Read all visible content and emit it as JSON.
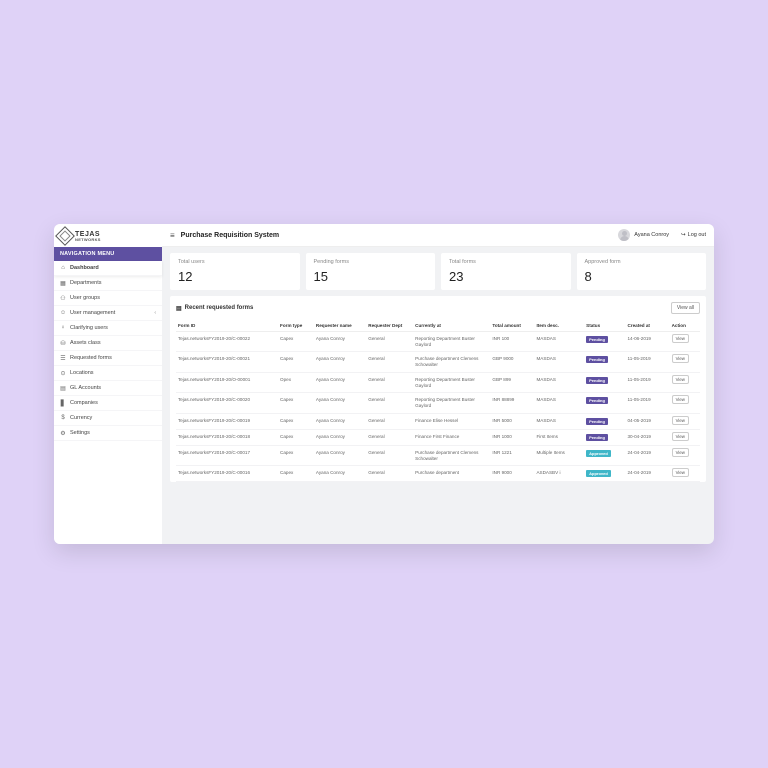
{
  "brand": {
    "line1": "TEJAS",
    "line2": "NETWORKS"
  },
  "nav": {
    "header": "NAVIGATION MENU",
    "items": [
      {
        "icon": "⌂",
        "label": "Dashboard",
        "active": true
      },
      {
        "icon": "▦",
        "label": "Departments"
      },
      {
        "icon": "⚇",
        "label": "User groups"
      },
      {
        "icon": "☺",
        "label": "User management",
        "chev": "‹"
      },
      {
        "icon": "♀",
        "label": "Clarifying users"
      },
      {
        "icon": "⛁",
        "label": "Assets class"
      },
      {
        "icon": "☰",
        "label": "Requested forms"
      },
      {
        "icon": "⊙",
        "label": "Locations"
      },
      {
        "icon": "▤",
        "label": "GL Accounts"
      },
      {
        "icon": "▋",
        "label": "Companies"
      },
      {
        "icon": "$",
        "label": "Currency"
      },
      {
        "icon": "⚙",
        "label": "Settings"
      }
    ]
  },
  "header": {
    "title": "Purchase Requisition System",
    "user": "Ayana Conroy",
    "logout": "Log out"
  },
  "cards": [
    {
      "label": "Total users",
      "value": "12"
    },
    {
      "label": "Pending forms",
      "value": "15"
    },
    {
      "label": "Total forms",
      "value": "23"
    },
    {
      "label": "Approved form",
      "value": "8"
    }
  ],
  "table": {
    "title": "Recent requested forms",
    "view_all": "View all",
    "columns": [
      "Form ID",
      "Form type",
      "Requester name",
      "Requester Dept",
      "Currently at",
      "Total amount",
      "Item desc.",
      "Status",
      "Created at",
      "Action"
    ],
    "rows": [
      {
        "id": "Tejas.networksFY2019-20/C-00022",
        "type": "Capex",
        "req": "Ayana Conroy",
        "dept": "General",
        "curr": "Reporting Department Buster Gaylord",
        "amt": "INR 100",
        "item": "MASDAS",
        "status": "Pending",
        "status_kind": "pending",
        "created": "14-06-2019"
      },
      {
        "id": "Tejas.networksFY2019-20/C-00021",
        "type": "Capex",
        "req": "Ayana Conroy",
        "dept": "General",
        "curr": "Purchase department Clemens Schowalter",
        "amt": "GBP 9000",
        "item": "MASDAS",
        "status": "Pending",
        "status_kind": "pending",
        "created": "11-05-2019"
      },
      {
        "id": "Tejas.networksFY2019-20/O-00001",
        "type": "Opex",
        "req": "Ayana Conroy",
        "dept": "General",
        "curr": "Reporting Department Buster Gaylord",
        "amt": "GBP 899",
        "item": "MASDAS",
        "status": "Pending",
        "status_kind": "pending",
        "created": "11-05-2019"
      },
      {
        "id": "Tejas.networksFY2019-20/C-00020",
        "type": "Capex",
        "req": "Ayana Conroy",
        "dept": "General",
        "curr": "Reporting Department Buster Gaylord",
        "amt": "INR 88899",
        "item": "MASDAS",
        "status": "Pending",
        "status_kind": "pending",
        "created": "11-05-2019"
      },
      {
        "id": "Tejas.networksFY2019-20/C-00019",
        "type": "Capex",
        "req": "Ayana Conroy",
        "dept": "General",
        "curr": "Finance Elise Hessel",
        "amt": "INR 5000",
        "item": "MASDAS",
        "status": "Pending",
        "status_kind": "pending",
        "created": "04-05-2019"
      },
      {
        "id": "Tejas.networksFY2019-20/C-00018",
        "type": "Capex",
        "req": "Ayana Conroy",
        "dept": "General",
        "curr": "Finance First Finance",
        "amt": "INR 1000",
        "item": "First Items",
        "status": "Pending",
        "status_kind": "pending",
        "created": "30-04-2019"
      },
      {
        "id": "Tejas.networksFY2019-20/C-00017",
        "type": "Capex",
        "req": "Ayana Conroy",
        "dept": "General",
        "curr": "Purchase department Clemens Schowalter",
        "amt": "INR 1221",
        "item": "Multiple Items",
        "status": "Approved",
        "status_kind": "approved",
        "created": "24-04-2019"
      },
      {
        "id": "Tejas.networksFY2019-20/C-00016",
        "type": "Capex",
        "req": "Ayana Conroy",
        "dept": "General",
        "curr": "Purchase department",
        "amt": "INR 9000",
        "item": "ASDASBV i",
        "status": "Approved",
        "status_kind": "approved",
        "created": "24-04-2019"
      }
    ],
    "view_label": "View"
  },
  "colors": {
    "page_bg": "#dfd2f7",
    "accent": "#5e50a1",
    "approved": "#3fb6c8",
    "app_bg": "#f1f2f4"
  }
}
